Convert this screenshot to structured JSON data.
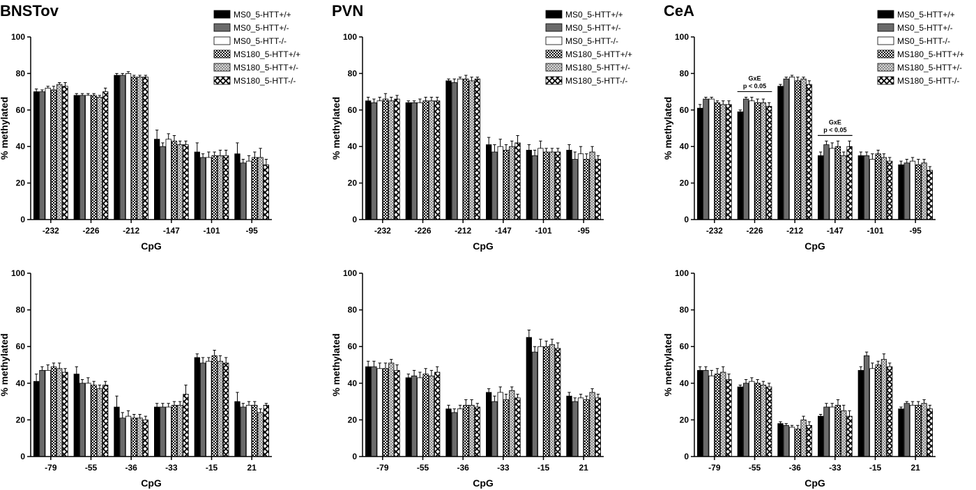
{
  "legend_entries": [
    {
      "label": "MS0_5-HTT+/+",
      "fill": "#000000",
      "pattern": "solid"
    },
    {
      "label": "MS0_5-HTT+/-",
      "fill": "#6b6b6b",
      "pattern": "solid"
    },
    {
      "label": "MS0_5-HTT-/-",
      "fill": "#ffffff",
      "pattern": "solid"
    },
    {
      "label": "MS180_5-HTT+/+",
      "fill": "#000000",
      "pattern": "check-dark"
    },
    {
      "label": "MS180_5-HTT+/-",
      "fill": "#b0b0b0",
      "pattern": "check-light"
    },
    {
      "label": "MS180_5-HTT-/-",
      "fill": "#000000",
      "pattern": "x-open"
    }
  ],
  "chart_data": [
    {
      "type": "bar",
      "title": "BNSTov",
      "xlabel": "CpG",
      "ylabel": "% methylated",
      "ylim": [
        0,
        100
      ],
      "yticks": [
        "0",
        "20",
        "40",
        "60",
        "80",
        "100"
      ],
      "grid": false,
      "legend": "top-right",
      "categories": [
        "-232",
        "-226",
        "-212",
        "-147",
        "-101",
        "-95"
      ],
      "series": [
        {
          "name": "MS0_5-HTT+/+",
          "values": [
            70,
            68,
            79,
            44,
            37,
            36
          ],
          "errors": [
            1.5,
            1,
            1,
            5,
            5,
            6
          ]
        },
        {
          "name": "MS0_5-HTT+/-",
          "values": [
            70,
            68,
            79,
            40,
            34,
            31
          ],
          "errors": [
            1,
            1,
            1,
            2,
            2,
            2
          ]
        },
        {
          "name": "MS0_5-HTT-/-",
          "values": [
            72,
            68,
            80,
            44,
            34,
            32
          ],
          "errors": [
            1,
            1,
            1,
            3,
            3,
            3
          ]
        },
        {
          "name": "MS180_5-HTT+/+",
          "values": [
            71,
            68,
            78,
            43,
            35,
            34
          ],
          "errors": [
            2,
            1,
            1,
            3,
            2,
            3
          ]
        },
        {
          "name": "MS180_5-HTT+/-",
          "values": [
            74,
            67,
            78,
            41,
            35,
            34
          ],
          "errors": [
            1,
            1,
            1,
            2,
            3,
            5
          ]
        },
        {
          "name": "MS180_5-HTT-/-",
          "values": [
            73,
            70,
            78,
            41,
            35,
            30
          ],
          "errors": [
            2,
            2,
            1,
            2,
            3,
            3
          ]
        }
      ]
    },
    {
      "type": "bar",
      "title": "PVN",
      "xlabel": "CpG",
      "ylabel": "% methylated",
      "ylim": [
        0,
        100
      ],
      "yticks": [
        "0",
        "20",
        "40",
        "60",
        "80",
        "100"
      ],
      "grid": false,
      "legend": "top-right",
      "categories": [
        "-232",
        "-226",
        "-212",
        "-147",
        "-101",
        "-95"
      ],
      "series": [
        {
          "name": "MS0_5-HTT+/+",
          "values": [
            65,
            64,
            76,
            41,
            38,
            38
          ],
          "errors": [
            2,
            1,
            1,
            4,
            3,
            3
          ]
        },
        {
          "name": "MS0_5-HTT+/-",
          "values": [
            64,
            64,
            75,
            37,
            35,
            33
          ],
          "errors": [
            2,
            1,
            2,
            4,
            3,
            4
          ]
        },
        {
          "name": "MS0_5-HTT-/-",
          "values": [
            65,
            64,
            77,
            40,
            39,
            36
          ],
          "errors": [
            2,
            2,
            1,
            4,
            4,
            4
          ]
        },
        {
          "name": "MS180_5-HTT+/+",
          "values": [
            66,
            65,
            77,
            38,
            37,
            33
          ],
          "errors": [
            3,
            2,
            2,
            3,
            2,
            3
          ]
        },
        {
          "name": "MS180_5-HTT+/-",
          "values": [
            65,
            65,
            76,
            40,
            37,
            37
          ],
          "errors": [
            2,
            2,
            2,
            3,
            2,
            3
          ]
        },
        {
          "name": "MS180_5-HTT-/-",
          "values": [
            66,
            65,
            77,
            42,
            37,
            33
          ],
          "errors": [
            2,
            2,
            1,
            4,
            2,
            2
          ]
        }
      ]
    },
    {
      "type": "bar",
      "title": "CeA",
      "xlabel": "CpG",
      "ylabel": "% methylated",
      "ylim": [
        0,
        100
      ],
      "yticks": [
        "0",
        "20",
        "40",
        "60",
        "80",
        "100"
      ],
      "grid": false,
      "legend": "top-right",
      "categories": [
        "-232",
        "-226",
        "-212",
        "-147",
        "-101",
        "-95"
      ],
      "series": [
        {
          "name": "MS0_5-HTT+/+",
          "values": [
            61,
            59,
            73,
            35,
            35,
            30
          ],
          "errors": [
            2,
            1,
            1,
            2,
            2,
            2
          ]
        },
        {
          "name": "MS0_5-HTT+/-",
          "values": [
            66,
            66,
            77,
            41,
            35,
            31
          ],
          "errors": [
            1,
            1,
            1,
            2,
            2,
            2
          ]
        },
        {
          "name": "MS0_5-HTT-/-",
          "values": [
            66,
            65,
            78,
            39,
            33,
            32
          ],
          "errors": [
            1,
            2,
            1,
            3,
            3,
            2
          ]
        },
        {
          "name": "MS180_5-HTT+/+",
          "values": [
            64,
            64,
            76,
            40,
            36,
            30
          ],
          "errors": [
            1,
            2,
            2,
            3,
            2,
            3
          ]
        },
        {
          "name": "MS180_5-HTT+/-",
          "values": [
            63,
            64,
            77,
            35,
            34,
            31
          ],
          "errors": [
            2,
            2,
            1,
            2,
            2,
            2
          ]
        },
        {
          "name": "MS180_5-HTT-/-",
          "values": [
            63,
            62,
            74,
            40,
            32,
            27
          ],
          "errors": [
            2,
            2,
            2,
            3,
            2,
            2
          ]
        }
      ],
      "annotations": [
        {
          "category": "-226",
          "lines": [
            "GxE",
            "p < 0.05"
          ]
        },
        {
          "category": "-147",
          "lines": [
            "GxE",
            "p < 0.05"
          ]
        }
      ]
    },
    {
      "type": "bar",
      "title": "",
      "xlabel": "CpG",
      "ylabel": "% methylated",
      "ylim": [
        0,
        100
      ],
      "yticks": [
        "0",
        "20",
        "40",
        "60",
        "80",
        "100"
      ],
      "grid": false,
      "categories": [
        "-79",
        "-55",
        "-36",
        "-33",
        "-15",
        "21"
      ],
      "series": [
        {
          "name": "MS0_5-HTT+/+",
          "values": [
            41,
            45,
            27,
            27,
            54,
            30
          ],
          "errors": [
            4,
            4,
            6,
            2,
            2,
            5
          ]
        },
        {
          "name": "MS0_5-HTT+/-",
          "values": [
            47,
            40,
            21,
            27,
            51,
            27
          ],
          "errors": [
            2,
            2,
            3,
            2,
            3,
            2
          ]
        },
        {
          "name": "MS0_5-HTT-/-",
          "values": [
            47,
            40,
            22,
            27,
            52,
            28
          ],
          "errors": [
            3,
            3,
            3,
            2,
            2,
            2
          ]
        },
        {
          "name": "MS180_5-HTT+/+",
          "values": [
            49,
            39,
            21,
            28,
            55,
            28
          ],
          "errors": [
            2,
            2,
            2,
            2,
            3,
            2
          ]
        },
        {
          "name": "MS180_5-HTT+/-",
          "values": [
            48,
            37,
            21,
            28,
            52,
            24
          ],
          "errors": [
            3,
            2,
            2,
            2,
            3,
            2
          ]
        },
        {
          "name": "MS180_5-HTT-/-",
          "values": [
            46,
            39,
            20,
            34,
            51,
            28
          ],
          "errors": [
            2,
            2,
            2,
            5,
            3,
            1
          ]
        }
      ]
    },
    {
      "type": "bar",
      "title": "",
      "xlabel": "CpG",
      "ylabel": "% methylated",
      "ylim": [
        0,
        100
      ],
      "yticks": [
        "0",
        "20",
        "40",
        "60",
        "80",
        "100"
      ],
      "grid": false,
      "categories": [
        "-79",
        "-55",
        "-36",
        "-33",
        "-15",
        "21"
      ],
      "series": [
        {
          "name": "MS0_5-HTT+/+",
          "values": [
            49,
            43,
            26,
            35,
            65,
            33
          ],
          "errors": [
            3,
            2,
            2,
            2,
            4,
            2
          ]
        },
        {
          "name": "MS0_5-HTT+/-",
          "values": [
            49,
            44,
            24,
            30,
            57,
            30
          ],
          "errors": [
            3,
            3,
            2,
            3,
            3,
            2
          ]
        },
        {
          "name": "MS0_5-HTT-/-",
          "values": [
            48,
            43,
            26,
            35,
            60,
            32
          ],
          "errors": [
            3,
            3,
            2,
            3,
            4,
            2
          ]
        },
        {
          "name": "MS180_5-HTT+/+",
          "values": [
            48,
            45,
            28,
            31,
            60,
            31
          ],
          "errors": [
            3,
            3,
            3,
            3,
            3,
            2
          ]
        },
        {
          "name": "MS180_5-HTT+/-",
          "values": [
            51,
            44,
            28,
            36,
            61,
            35
          ],
          "errors": [
            2,
            3,
            3,
            2,
            3,
            2
          ]
        },
        {
          "name": "MS180_5-HTT-/-",
          "values": [
            47,
            46,
            27,
            32,
            59,
            32
          ],
          "errors": [
            3,
            3,
            2,
            2,
            3,
            2
          ]
        }
      ]
    },
    {
      "type": "bar",
      "title": "",
      "xlabel": "CpG",
      "ylabel": "% methylated",
      "ylim": [
        0,
        100
      ],
      "yticks": [
        "0",
        "20",
        "40",
        "60",
        "80",
        "100"
      ],
      "grid": false,
      "categories": [
        "-79",
        "-55",
        "-36",
        "-33",
        "-15",
        "21"
      ],
      "series": [
        {
          "name": "MS0_5-HTT+/+",
          "values": [
            47,
            38,
            18,
            22,
            47,
            26
          ],
          "errors": [
            2,
            1,
            1,
            1,
            2,
            1
          ]
        },
        {
          "name": "MS0_5-HTT+/-",
          "values": [
            47,
            40,
            17,
            27,
            55,
            29
          ],
          "errors": [
            2,
            2,
            1,
            2,
            2,
            1
          ]
        },
        {
          "name": "MS0_5-HTT-/-",
          "values": [
            44,
            41,
            16,
            27,
            48,
            28
          ],
          "errors": [
            3,
            2,
            1,
            2,
            3,
            2
          ]
        },
        {
          "name": "MS180_5-HTT+/+",
          "values": [
            45,
            40,
            15,
            28,
            50,
            28
          ],
          "errors": [
            3,
            2,
            2,
            3,
            2,
            2
          ]
        },
        {
          "name": "MS180_5-HTT+/-",
          "values": [
            46,
            39,
            20,
            25,
            53,
            29
          ],
          "errors": [
            3,
            2,
            2,
            3,
            3,
            2
          ]
        },
        {
          "name": "MS180_5-HTT-/-",
          "values": [
            42,
            38,
            17,
            22,
            49,
            26
          ],
          "errors": [
            3,
            2,
            2,
            3,
            2,
            2
          ]
        }
      ]
    }
  ]
}
